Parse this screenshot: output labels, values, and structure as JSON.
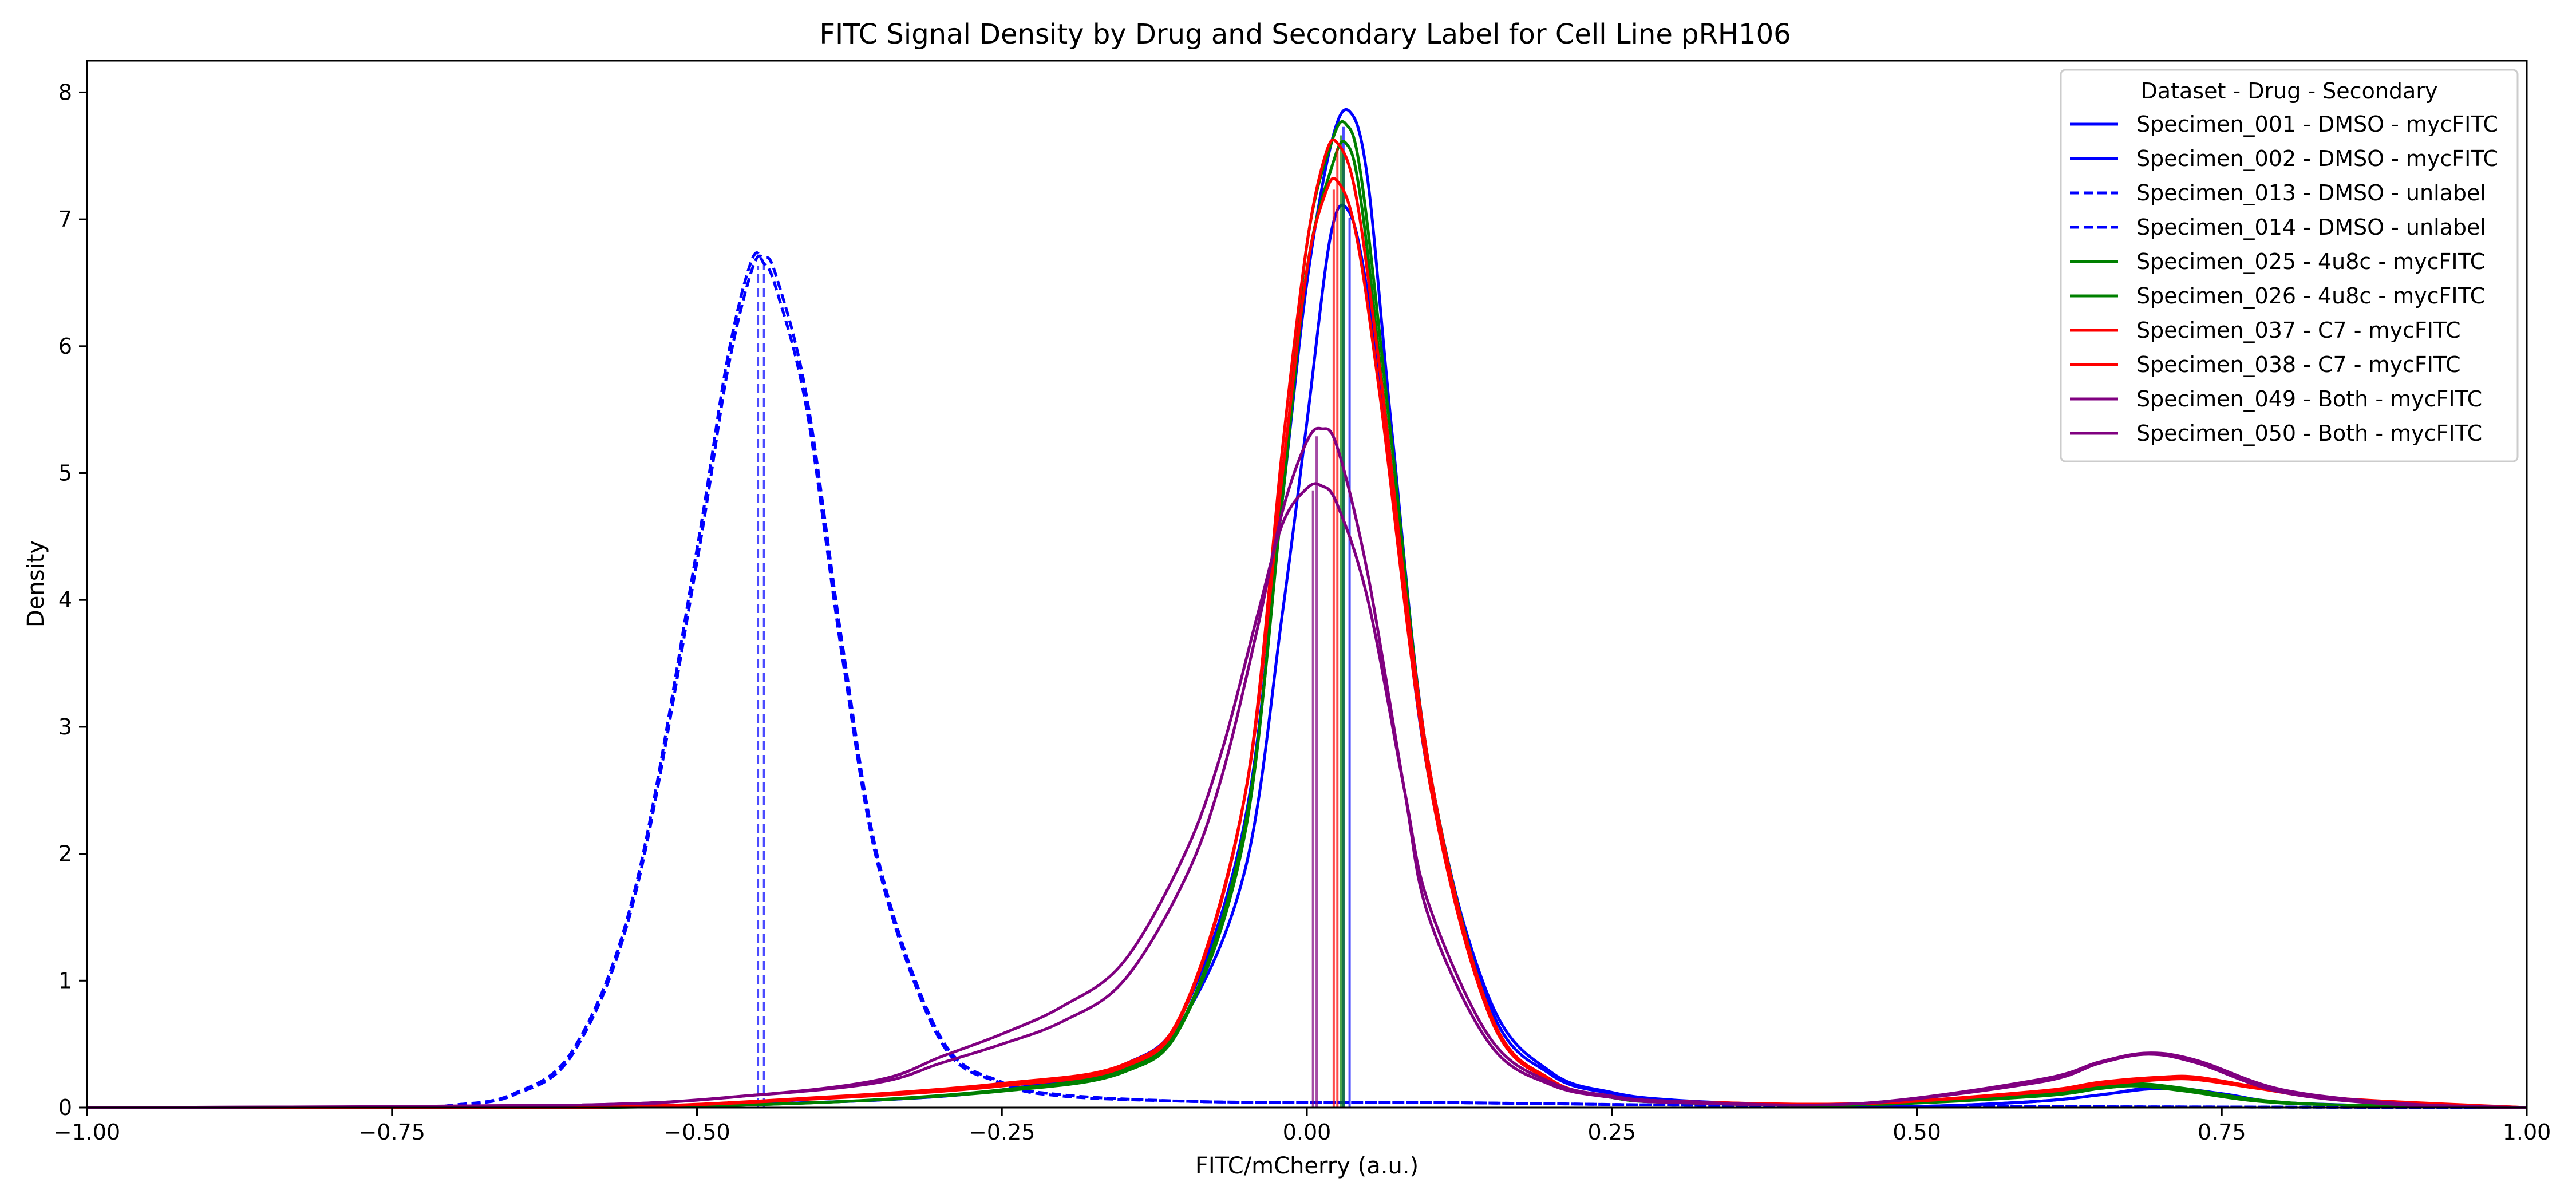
{
  "chart_data": {
    "type": "line",
    "title": "FITC Signal Density by Drug and Secondary Label for Cell Line pRH106",
    "xlabel": "FITC/mCherry (a.u.)",
    "ylabel": "Density",
    "xlim": [
      -1.0,
      1.0
    ],
    "ylim": [
      0,
      8.25
    ],
    "xticks": [
      -1.0,
      -0.75,
      -0.5,
      -0.25,
      0.0,
      0.25,
      0.5,
      0.75,
      1.0
    ],
    "xtick_labels": [
      "−1.00",
      "−0.75",
      "−0.50",
      "−0.25",
      "0.00",
      "0.25",
      "0.50",
      "0.75",
      "1.00"
    ],
    "yticks": [
      0,
      1,
      2,
      3,
      4,
      5,
      6,
      7,
      8
    ],
    "ytick_labels": [
      "0",
      "1",
      "2",
      "3",
      "4",
      "5",
      "6",
      "7",
      "8"
    ],
    "grid": false,
    "legend": {
      "title": "Dataset - Drug - Secondary",
      "placement": "top-right"
    },
    "series": [
      {
        "name": "Specimen_001 - DMSO - mycFITC",
        "color": "#0000ff",
        "style": "solid",
        "median_line": 0.035,
        "x": [
          -1.0,
          -0.7,
          -0.5,
          -0.35,
          -0.25,
          -0.15,
          -0.1,
          -0.05,
          -0.02,
          0.0,
          0.02,
          0.035,
          0.05,
          0.07,
          0.1,
          0.15,
          0.2,
          0.25,
          0.3,
          0.4,
          0.5,
          0.6,
          0.65,
          0.7,
          0.75,
          0.8,
          0.9,
          1.0
        ],
        "y": [
          0,
          0.0,
          0.02,
          0.06,
          0.14,
          0.32,
          0.72,
          1.9,
          3.9,
          5.4,
          6.9,
          7.05,
          6.4,
          4.9,
          2.6,
          0.85,
          0.28,
          0.12,
          0.06,
          0.02,
          0.01,
          0.05,
          0.1,
          0.15,
          0.1,
          0.04,
          0.01,
          0
        ]
      },
      {
        "name": "Specimen_002 - DMSO - mycFITC",
        "color": "#0000ff",
        "style": "solid",
        "median_line": 0.03,
        "x": [
          -1.0,
          -0.7,
          -0.5,
          -0.35,
          -0.25,
          -0.15,
          -0.1,
          -0.05,
          -0.02,
          0.0,
          0.02,
          0.035,
          0.05,
          0.07,
          0.1,
          0.15,
          0.2,
          0.25,
          0.3,
          0.4,
          0.5,
          0.6,
          0.65,
          0.7,
          0.75,
          0.8,
          0.9,
          1.0
        ],
        "y": [
          0,
          0.0,
          0.02,
          0.06,
          0.14,
          0.34,
          0.78,
          2.3,
          4.8,
          6.5,
          7.6,
          7.85,
          7.3,
          5.3,
          2.7,
          0.8,
          0.26,
          0.11,
          0.05,
          0.02,
          0.01,
          0.05,
          0.1,
          0.16,
          0.11,
          0.04,
          0.01,
          0
        ]
      },
      {
        "name": "Specimen_013 - DMSO - unlabel",
        "color": "#0000ff",
        "style": "dashed",
        "median_line": -0.445,
        "x": [
          -1.0,
          -0.75,
          -0.7,
          -0.65,
          -0.6,
          -0.55,
          -0.5,
          -0.475,
          -0.455,
          -0.445,
          -0.435,
          -0.41,
          -0.38,
          -0.35,
          -0.3,
          -0.25,
          -0.2,
          -0.1,
          0.0,
          0.1,
          0.2,
          0.3,
          0.5,
          1.0
        ],
        "y": [
          0,
          0.0,
          0.02,
          0.1,
          0.45,
          1.7,
          4.3,
          5.8,
          6.6,
          6.7,
          6.55,
          5.6,
          3.6,
          1.9,
          0.55,
          0.2,
          0.1,
          0.05,
          0.04,
          0.04,
          0.03,
          0.02,
          0.01,
          0
        ]
      },
      {
        "name": "Specimen_014 - DMSO - unlabel",
        "color": "#0000ff",
        "style": "dashed",
        "median_line": -0.45,
        "x": [
          -1.0,
          -0.75,
          -0.7,
          -0.65,
          -0.6,
          -0.55,
          -0.5,
          -0.475,
          -0.455,
          -0.445,
          -0.435,
          -0.41,
          -0.38,
          -0.35,
          -0.3,
          -0.25,
          -0.2,
          -0.1,
          0.0,
          0.1,
          0.2,
          0.3,
          0.5,
          1.0
        ],
        "y": [
          0,
          0.0,
          0.02,
          0.11,
          0.48,
          1.75,
          4.4,
          5.9,
          6.68,
          6.65,
          6.45,
          5.5,
          3.5,
          1.85,
          0.52,
          0.19,
          0.09,
          0.05,
          0.04,
          0.04,
          0.03,
          0.02,
          0.01,
          0
        ]
      },
      {
        "name": "Specimen_025 - 4u8c - mycFITC",
        "color": "#008000",
        "style": "solid",
        "median_line": 0.028,
        "x": [
          -1.0,
          -0.6,
          -0.4,
          -0.25,
          -0.15,
          -0.1,
          -0.05,
          -0.02,
          0.0,
          0.02,
          0.032,
          0.045,
          0.07,
          0.1,
          0.15,
          0.2,
          0.25,
          0.3,
          0.45,
          0.6,
          0.65,
          0.68,
          0.72,
          0.78,
          0.85,
          1.0
        ],
        "y": [
          0,
          0.0,
          0.04,
          0.13,
          0.28,
          0.7,
          2.2,
          4.9,
          6.8,
          7.6,
          7.75,
          7.3,
          5.2,
          2.7,
          0.75,
          0.22,
          0.08,
          0.04,
          0.02,
          0.1,
          0.17,
          0.19,
          0.15,
          0.06,
          0.02,
          0
        ]
      },
      {
        "name": "Specimen_026 - 4u8c - mycFITC",
        "color": "#008000",
        "style": "solid",
        "median_line": 0.03,
        "x": [
          -1.0,
          -0.6,
          -0.4,
          -0.25,
          -0.15,
          -0.1,
          -0.05,
          -0.02,
          0.0,
          0.02,
          0.032,
          0.045,
          0.07,
          0.1,
          0.15,
          0.2,
          0.25,
          0.3,
          0.45,
          0.6,
          0.65,
          0.68,
          0.72,
          0.78,
          0.85,
          1.0
        ],
        "y": [
          0,
          0.0,
          0.04,
          0.14,
          0.3,
          0.72,
          2.25,
          4.8,
          6.6,
          7.4,
          7.6,
          7.1,
          5.0,
          2.6,
          0.72,
          0.21,
          0.08,
          0.04,
          0.02,
          0.09,
          0.15,
          0.17,
          0.13,
          0.05,
          0.02,
          0
        ]
      },
      {
        "name": "Specimen_037 - C7 - mycFITC",
        "color": "#ff0000",
        "style": "solid",
        "median_line": 0.025,
        "x": [
          -1.0,
          -0.6,
          -0.4,
          -0.25,
          -0.15,
          -0.1,
          -0.05,
          -0.02,
          0.0,
          0.015,
          0.025,
          0.04,
          0.06,
          0.1,
          0.15,
          0.2,
          0.25,
          0.3,
          0.45,
          0.6,
          0.65,
          0.7,
          0.73,
          0.78,
          0.85,
          1.0
        ],
        "y": [
          0,
          0.0,
          0.07,
          0.17,
          0.32,
          0.78,
          2.5,
          5.2,
          6.8,
          7.5,
          7.6,
          7.2,
          5.8,
          2.7,
          0.75,
          0.22,
          0.09,
          0.05,
          0.03,
          0.12,
          0.18,
          0.22,
          0.22,
          0.15,
          0.06,
          0
        ]
      },
      {
        "name": "Specimen_038 - C7 - mycFITC",
        "color": "#ff0000",
        "style": "solid",
        "median_line": 0.022,
        "x": [
          -1.0,
          -0.6,
          -0.4,
          -0.25,
          -0.15,
          -0.1,
          -0.05,
          -0.02,
          0.0,
          0.015,
          0.025,
          0.04,
          0.06,
          0.1,
          0.15,
          0.2,
          0.25,
          0.3,
          0.45,
          0.6,
          0.65,
          0.7,
          0.73,
          0.78,
          0.85,
          1.0
        ],
        "y": [
          0,
          0.0,
          0.08,
          0.19,
          0.34,
          0.8,
          2.5,
          5.0,
          6.6,
          7.2,
          7.3,
          6.9,
          5.6,
          2.6,
          0.72,
          0.21,
          0.09,
          0.05,
          0.03,
          0.13,
          0.2,
          0.24,
          0.24,
          0.16,
          0.07,
          0
        ]
      },
      {
        "name": "Specimen_049 - Both - mycFITC",
        "color": "#800080",
        "style": "solid",
        "median_line": 0.008,
        "x": [
          -1.0,
          -0.6,
          -0.45,
          -0.35,
          -0.3,
          -0.25,
          -0.2,
          -0.15,
          -0.1,
          -0.07,
          -0.04,
          -0.02,
          0.0,
          0.012,
          0.025,
          0.05,
          0.08,
          0.1,
          0.15,
          0.2,
          0.25,
          0.3,
          0.45,
          0.6,
          0.65,
          0.69,
          0.73,
          0.8,
          0.9,
          1.0
        ],
        "y": [
          0,
          0.02,
          0.1,
          0.2,
          0.35,
          0.5,
          0.68,
          1.0,
          1.8,
          2.6,
          3.8,
          4.7,
          5.25,
          5.35,
          5.2,
          4.2,
          2.5,
          1.5,
          0.5,
          0.18,
          0.08,
          0.04,
          0.03,
          0.2,
          0.35,
          0.42,
          0.35,
          0.12,
          0.02,
          0
        ]
      },
      {
        "name": "Specimen_050 - Both - mycFITC",
        "color": "#800080",
        "style": "solid",
        "median_line": 0.005,
        "x": [
          -1.0,
          -0.6,
          -0.45,
          -0.35,
          -0.3,
          -0.25,
          -0.2,
          -0.15,
          -0.1,
          -0.07,
          -0.04,
          -0.02,
          0.0,
          0.012,
          0.025,
          0.05,
          0.08,
          0.1,
          0.15,
          0.2,
          0.25,
          0.3,
          0.45,
          0.6,
          0.65,
          0.69,
          0.73,
          0.8,
          0.9,
          1.0
        ],
        "y": [
          0,
          0.02,
          0.1,
          0.22,
          0.4,
          0.58,
          0.8,
          1.15,
          2.0,
          2.8,
          3.9,
          4.6,
          4.88,
          4.9,
          4.75,
          4.0,
          2.5,
          1.6,
          0.55,
          0.2,
          0.09,
          0.05,
          0.03,
          0.22,
          0.36,
          0.43,
          0.37,
          0.14,
          0.03,
          0
        ]
      }
    ]
  }
}
